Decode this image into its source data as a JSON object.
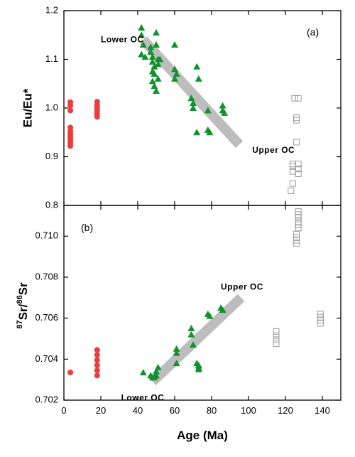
{
  "chart_data": [
    {
      "type": "scatter",
      "panel_label": "(a)",
      "ylabel": "Eu/Eu*",
      "xlim": [
        0,
        150
      ],
      "ylim": [
        0.8,
        1.2
      ],
      "yticks": [
        "0.8",
        "0.9",
        "1.0",
        "1.1",
        "1.2"
      ],
      "grid": false,
      "trend": {
        "from": [
          43,
          1.14
        ],
        "to": [
          95,
          0.925
        ]
      },
      "annotations": [
        {
          "text": "Lower OC",
          "x": 20,
          "y": 1.14
        },
        {
          "text": "Upper OC",
          "x": 102,
          "y": 0.913
        }
      ],
      "series": [
        {
          "marker": "circle",
          "color": "#ee3b3b",
          "points": [
            [
              3.5,
              1.012
            ],
            [
              3.5,
              1.005
            ],
            [
              3.5,
              0.995
            ],
            [
              3.5,
              0.96
            ],
            [
              3.5,
              0.952
            ],
            [
              3.5,
              0.946
            ],
            [
              3.5,
              0.94
            ],
            [
              3.5,
              0.934
            ],
            [
              3.5,
              0.928
            ],
            [
              3.5,
              0.922
            ],
            [
              18,
              1.013
            ],
            [
              18,
              1.007
            ],
            [
              18,
              1.002
            ],
            [
              18,
              0.997
            ],
            [
              18,
              0.992
            ],
            [
              18,
              0.987
            ],
            [
              18,
              0.982
            ]
          ]
        },
        {
          "marker": "triangle",
          "color": "#11922f",
          "points": [
            [
              42,
              1.165
            ],
            [
              42,
              1.15
            ],
            [
              43,
              1.13
            ],
            [
              42,
              1.11
            ],
            [
              44,
              1.105
            ],
            [
              47,
              1.125
            ],
            [
              47,
              1.115
            ],
            [
              48,
              1.105
            ],
            [
              48,
              1.095
            ],
            [
              49,
              1.085
            ],
            [
              48,
              1.075
            ],
            [
              50,
              1.155
            ],
            [
              50,
              1.13
            ],
            [
              51,
              1.1
            ],
            [
              51,
              1.09
            ],
            [
              49,
              1.07
            ],
            [
              48,
              1.055
            ],
            [
              49,
              1.045
            ],
            [
              50,
              1.035
            ],
            [
              51,
              1.06
            ],
            [
              52,
              1.1
            ],
            [
              60,
              1.13
            ],
            [
              60,
              1.08
            ],
            [
              61,
              1.07
            ],
            [
              60,
              1.06
            ],
            [
              69,
              1.02
            ],
            [
              70,
              1.01
            ],
            [
              70,
              1.0
            ],
            [
              72,
              1.085
            ],
            [
              73,
              1.06
            ],
            [
              72,
              0.95
            ],
            [
              78,
              0.955
            ],
            [
              79,
              0.95
            ],
            [
              78,
              0.995
            ],
            [
              86,
              1.005
            ],
            [
              86,
              0.995
            ],
            [
              87,
              0.99
            ]
          ]
        },
        {
          "marker": "square",
          "color": "#9a9a9a",
          "points": [
            [
              125,
              1.02
            ],
            [
              127,
              1.02
            ],
            [
              126,
              0.98
            ],
            [
              126,
              0.975
            ],
            [
              126,
              0.93
            ],
            [
              124,
              0.885
            ],
            [
              124,
              0.88
            ],
            [
              127,
              0.885
            ],
            [
              127,
              0.875
            ],
            [
              124,
              0.87
            ],
            [
              127,
              0.865
            ],
            [
              124,
              0.845
            ],
            [
              123,
              0.83
            ]
          ]
        }
      ]
    },
    {
      "type": "scatter",
      "panel_label": "(b)",
      "ylabel": "87Sr/86Sr",
      "ylabel_parts": {
        "sup1": "87",
        "base1": "Sr/",
        "sup2": "86",
        "base2": "Sr"
      },
      "xlabel": "Age (Ma)",
      "xlim": [
        0,
        150
      ],
      "ylim": [
        0.702,
        0.7115
      ],
      "xticks": [
        "0",
        "20",
        "40",
        "60",
        "80",
        "100",
        "120",
        "140"
      ],
      "yticks": [
        "0.702",
        "0.704",
        "0.706",
        "0.708",
        "0.710"
      ],
      "grid": false,
      "trend": {
        "from": [
          48,
          0.7029
        ],
        "to": [
          96,
          0.707
        ]
      },
      "annotations": [
        {
          "text": "Upper OC",
          "x": 85,
          "y": 0.7075
        },
        {
          "text": "Lower OC",
          "x": 31,
          "y": 0.7021
        }
      ],
      "series": [
        {
          "marker": "circle",
          "color": "#ee3b3b",
          "points": [
            [
              3.5,
              0.70335
            ],
            [
              18,
              0.70445
            ],
            [
              18,
              0.7042
            ],
            [
              18,
              0.70395
            ],
            [
              18,
              0.7037
            ],
            [
              18,
              0.70345
            ],
            [
              18,
              0.7032
            ]
          ]
        },
        {
          "marker": "triangle",
          "color": "#11922f",
          "points": [
            [
              43,
              0.70335
            ],
            [
              47,
              0.7032
            ],
            [
              48,
              0.7031
            ],
            [
              49,
              0.7031
            ],
            [
              50,
              0.7032
            ],
            [
              50,
              0.7034
            ],
            [
              51,
              0.7036
            ],
            [
              61,
              0.7045
            ],
            [
              61,
              0.7043
            ],
            [
              61,
              0.7038
            ],
            [
              69,
              0.7055
            ],
            [
              69,
              0.7052
            ],
            [
              70,
              0.7047
            ],
            [
              72,
              0.7038
            ],
            [
              73,
              0.7037
            ],
            [
              73,
              0.7036
            ],
            [
              73,
              0.7035
            ],
            [
              78,
              0.7062
            ],
            [
              79,
              0.7061
            ],
            [
              85,
              0.7065
            ],
            [
              86,
              0.7064
            ]
          ]
        },
        {
          "marker": "square",
          "color": "#9a9a9a",
          "points": [
            [
              115,
              0.70535
            ],
            [
              115,
              0.70515
            ],
            [
              115,
              0.70495
            ],
            [
              115,
              0.70475
            ],
            [
              126,
              0.7101
            ],
            [
              126,
              0.70995
            ],
            [
              126,
              0.7098
            ],
            [
              126,
              0.70965
            ],
            [
              127,
              0.7112
            ],
            [
              127,
              0.71105
            ],
            [
              127,
              0.7109
            ],
            [
              127,
              0.7107
            ],
            [
              127,
              0.71055
            ],
            [
              127,
              0.7104
            ],
            [
              139,
              0.7062
            ],
            [
              139,
              0.70605
            ],
            [
              139,
              0.7059
            ],
            [
              139,
              0.70575
            ]
          ]
        }
      ]
    }
  ]
}
